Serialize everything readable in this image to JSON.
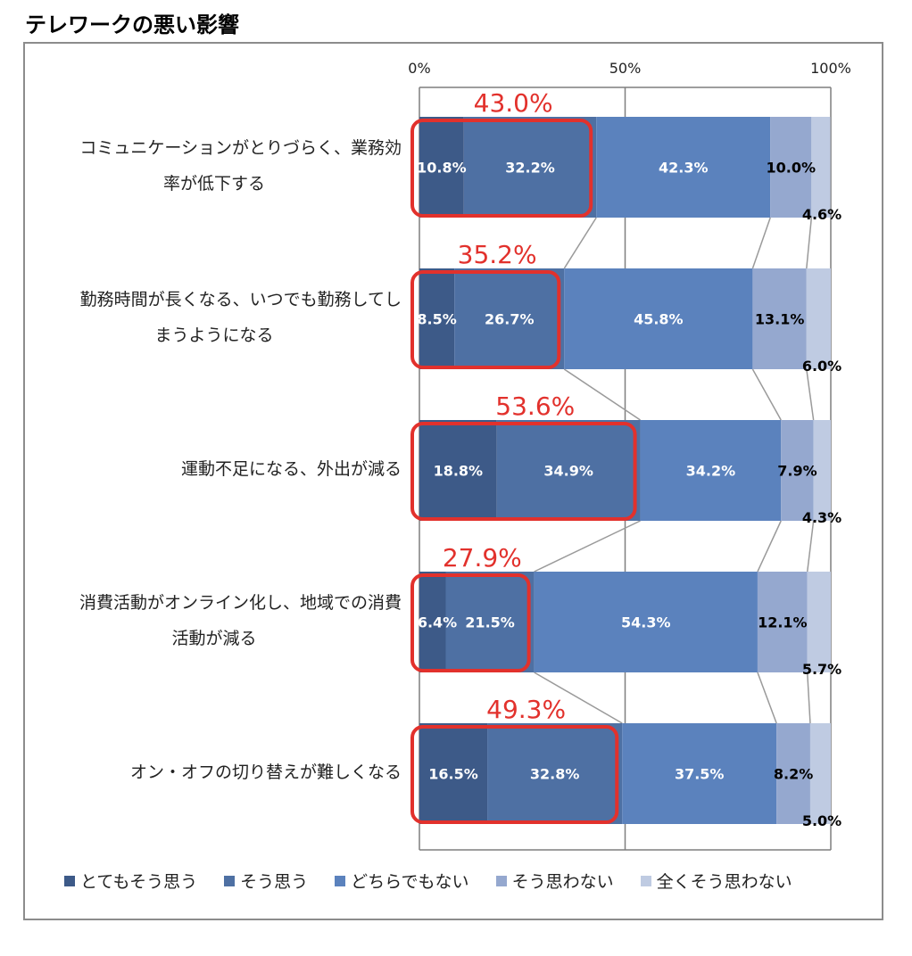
{
  "page_title": "テレワークの悪い影響",
  "colors": {
    "s1": "#3d5a88",
    "s2": "#4e70a3",
    "s3": "#5b82bd",
    "s4": "#95a8cf",
    "s5": "#bfcbe2",
    "highlight": "#e2312c",
    "connector": "#9a9a9a",
    "gridline": "#7f7f7f"
  },
  "chart_data": {
    "type": "bar",
    "orientation": "horizontal-stacked-100",
    "x_ticks": [
      "0%",
      "50%",
      "100%"
    ],
    "xlim": [
      0,
      100
    ],
    "categories": [
      [
        "コミュニケーションがとりづらく、業務効",
        "率が低下する"
      ],
      [
        "勤務時間が長くなる、いつでも勤務してし",
        "まうようになる"
      ],
      [
        "運動不足になる、外出が減る"
      ],
      [
        "消費活動がオンライン化し、地域での消費",
        "活動が減る"
      ],
      [
        "オン・オフの切り替えが難しくなる"
      ]
    ],
    "series": [
      {
        "name": "とてもそう思う",
        "values": [
          10.8,
          8.5,
          18.8,
          6.4,
          16.5
        ],
        "labels": [
          "10.8%",
          "8.5%",
          "18.8%",
          "6.4%",
          "16.5%"
        ]
      },
      {
        "name": "そう思う",
        "values": [
          32.2,
          26.7,
          34.9,
          21.5,
          32.8
        ],
        "labels": [
          "32.2%",
          "26.7%",
          "34.9%",
          "21.5%",
          "32.8%"
        ]
      },
      {
        "name": "どちらでもない",
        "values": [
          42.3,
          45.8,
          34.2,
          54.3,
          37.5
        ],
        "labels": [
          "42.3%",
          "45.8%",
          "34.2%",
          "54.3%",
          "37.5%"
        ]
      },
      {
        "name": "そう思わない",
        "values": [
          10.0,
          13.1,
          7.9,
          12.1,
          8.2
        ],
        "labels": [
          "10.0%",
          "13.1%",
          "7.9%",
          "12.1%",
          "8.2%"
        ]
      },
      {
        "name": "全くそう思わない",
        "values": [
          4.6,
          6.0,
          4.3,
          5.7,
          5.0
        ],
        "labels": [
          "4.6%",
          "6.0%",
          "4.3%",
          "5.7%",
          "5.0%"
        ]
      }
    ],
    "highlight_totals": [
      "43.0%",
      "35.2%",
      "53.6%",
      "27.9%",
      "49.3%"
    ],
    "grid": true,
    "legend_position": "bottom"
  }
}
